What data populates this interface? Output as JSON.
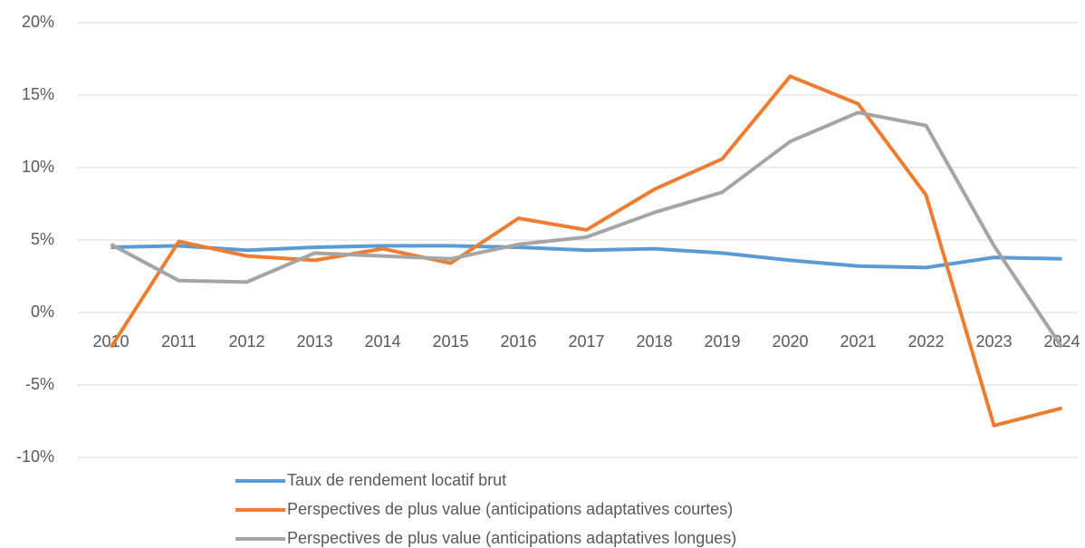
{
  "chart_data": {
    "type": "line",
    "categories": [
      "2010",
      "2011",
      "2012",
      "2013",
      "2014",
      "2015",
      "2016",
      "2017",
      "2018",
      "2019",
      "2020",
      "2021",
      "2022",
      "2023",
      "2024"
    ],
    "series": [
      {
        "name": "Taux de rendement locatif brut",
        "color": "#5b9bd5",
        "values": [
          4.5,
          4.6,
          4.3,
          4.5,
          4.6,
          4.6,
          4.5,
          4.3,
          4.4,
          4.1,
          3.6,
          3.2,
          3.1,
          3.8,
          3.7
        ]
      },
      {
        "name": "Perspectives de plus value (anticipations adaptatives courtes)",
        "color": "#ed7d31",
        "values": [
          -2.4,
          4.9,
          3.9,
          3.6,
          4.4,
          3.4,
          6.5,
          5.7,
          8.5,
          10.6,
          16.3,
          14.4,
          8.1,
          -7.8,
          -6.6
        ]
      },
      {
        "name": "Perspectives de plus value (anticipations adaptatives longues)",
        "color": "#a5a5a5",
        "values": [
          4.7,
          2.2,
          2.1,
          4.1,
          3.9,
          3.7,
          4.7,
          5.2,
          6.9,
          8.3,
          11.8,
          13.8,
          12.9,
          4.6,
          -2.4
        ]
      }
    ],
    "ylim": [
      -10,
      20
    ],
    "yticks": [
      {
        "value": -10,
        "label": "-10%"
      },
      {
        "value": -5,
        "label": "-5%"
      },
      {
        "value": 0,
        "label": "0%"
      },
      {
        "value": 5,
        "label": "5%"
      },
      {
        "value": 10,
        "label": "10%"
      },
      {
        "value": 15,
        "label": "15%"
      },
      {
        "value": 20,
        "label": "20%"
      }
    ],
    "grid": true,
    "legend": "bottom"
  }
}
